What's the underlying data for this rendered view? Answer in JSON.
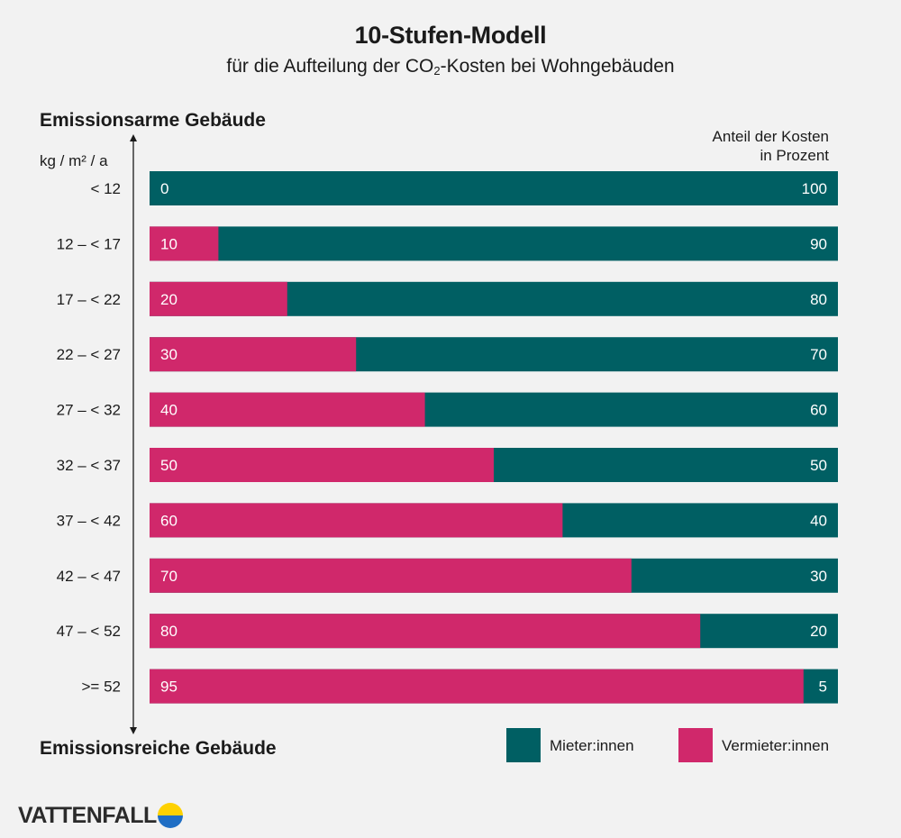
{
  "header": {
    "title": "10-Stufen-Modell",
    "subtitle_before": "für die Aufteilung der CO",
    "subtitle_subscript": "2",
    "subtitle_after": "-Kosten bei Wohngebäuden"
  },
  "axis": {
    "top_label": "Emissionsarme Gebäude",
    "bottom_label": "Emissionsreiche Gebäude",
    "unit": "kg / m² / a"
  },
  "share_label": {
    "line1": "Anteil der Kosten",
    "line2": "in Prozent"
  },
  "legend": {
    "tenant": "Mieter:innen",
    "landlord": "Vermieter:innen"
  },
  "brand": {
    "name": "VATTENFALL"
  },
  "colors": {
    "tenant": "#005f63",
    "landlord": "#d0286b",
    "background": "#f2f2f2",
    "logo_yellow": "#fed100",
    "logo_blue": "#1f6ec4"
  },
  "chart_data": {
    "type": "bar",
    "orientation": "horizontal-stacked",
    "title": "10-Stufen-Modell",
    "subtitle": "für die Aufteilung der CO2-Kosten bei Wohngebäuden",
    "xlabel": "Anteil der Kosten in Prozent",
    "ylabel": "kg / m² / a",
    "xlim": [
      0,
      100
    ],
    "categories": [
      "< 12",
      "12 – < 17",
      "17 – < 22",
      "22 – < 27",
      "27 – < 32",
      "32 – < 37",
      "37 – < 42",
      "42 – < 47",
      "47 – < 52",
      ">= 52"
    ],
    "series": [
      {
        "name": "Vermieter:innen",
        "values": [
          0,
          10,
          20,
          30,
          40,
          50,
          60,
          70,
          80,
          95
        ]
      },
      {
        "name": "Mieter:innen",
        "values": [
          100,
          90,
          80,
          70,
          60,
          50,
          40,
          30,
          20,
          5
        ]
      }
    ]
  }
}
